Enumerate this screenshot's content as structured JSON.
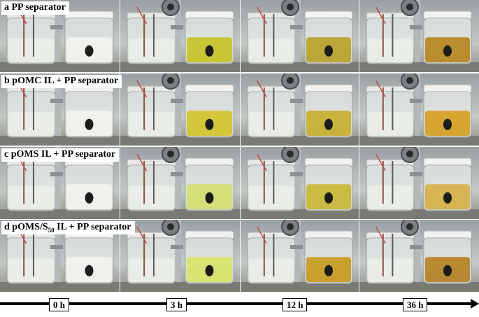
{
  "rows": [
    {
      "label_prefix": "a ",
      "label_main": "PP separator",
      "label_sub": "",
      "label_suffix": "",
      "colors": [
        "#f2f2ee",
        "#c8c428",
        "#b9a22a",
        "#b7861e"
      ]
    },
    {
      "label_prefix": "b ",
      "label_main": "pOMC IL + PP separator",
      "label_sub": "",
      "label_suffix": "",
      "colors": [
        "#f2f2ee",
        "#d2c42c",
        "#c6b02e",
        "#d6a022"
      ]
    },
    {
      "label_prefix": "c ",
      "label_main": "pOMS IL + PP separator",
      "label_sub": "",
      "label_suffix": "",
      "colors": [
        "#f2f2ee",
        "#d2e070",
        "#c8b834",
        "#d6b048"
      ]
    },
    {
      "label_prefix": "d ",
      "label_main": "pOMS/S",
      "label_sub": "50",
      "label_suffix": " IL + PP separator",
      "colors": [
        "#f2f2ee",
        "#d8e468",
        "#c89a20",
        "#b58224"
      ]
    }
  ],
  "time_labels": [
    "0 h",
    "3 h",
    "12 h",
    "36 h"
  ]
}
